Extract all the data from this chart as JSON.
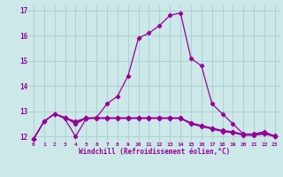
{
  "title": "",
  "xlabel": "Windchill (Refroidissement éolien,°C)",
  "ylabel": "",
  "background_color": "#cce8e8",
  "line_color": "#990099",
  "x_data": [
    0,
    1,
    2,
    3,
    4,
    5,
    6,
    7,
    8,
    9,
    10,
    11,
    12,
    13,
    14,
    15,
    16,
    17,
    18,
    19,
    20,
    21,
    22,
    23
  ],
  "series1": [
    11.9,
    12.6,
    12.9,
    12.7,
    12.0,
    12.7,
    12.75,
    13.3,
    13.6,
    14.4,
    15.9,
    16.1,
    16.4,
    16.8,
    16.9,
    15.1,
    14.8,
    13.3,
    12.9,
    12.5,
    12.1,
    12.1,
    12.2,
    12.0
  ],
  "series2": [
    11.9,
    12.6,
    12.9,
    12.75,
    12.5,
    12.72,
    12.72,
    12.72,
    12.72,
    12.72,
    12.72,
    12.72,
    12.72,
    12.72,
    12.72,
    12.5,
    12.4,
    12.3,
    12.2,
    12.15,
    12.05,
    12.05,
    12.1,
    12.0
  ],
  "series3": [
    11.9,
    12.6,
    12.9,
    12.75,
    12.55,
    12.73,
    12.73,
    12.73,
    12.73,
    12.73,
    12.73,
    12.73,
    12.73,
    12.73,
    12.73,
    12.53,
    12.42,
    12.32,
    12.22,
    12.17,
    12.07,
    12.07,
    12.12,
    12.02
  ],
  "series4": [
    11.9,
    12.6,
    12.9,
    12.75,
    12.6,
    12.74,
    12.74,
    12.74,
    12.74,
    12.74,
    12.74,
    12.74,
    12.74,
    12.74,
    12.74,
    12.54,
    12.44,
    12.34,
    12.24,
    12.19,
    12.09,
    12.09,
    12.14,
    12.04
  ],
  "ylim": [
    11.8,
    17.2
  ],
  "xlim": [
    -0.5,
    23.5
  ],
  "yticks": [
    12,
    13,
    14,
    15,
    16,
    17
  ],
  "xticks": [
    0,
    1,
    2,
    3,
    4,
    5,
    6,
    7,
    8,
    9,
    10,
    11,
    12,
    13,
    14,
    15,
    16,
    17,
    18,
    19,
    20,
    21,
    22,
    23
  ],
  "grid_color": "#aacece",
  "marker": "D",
  "markersize": 2.2,
  "linewidth": 0.9
}
